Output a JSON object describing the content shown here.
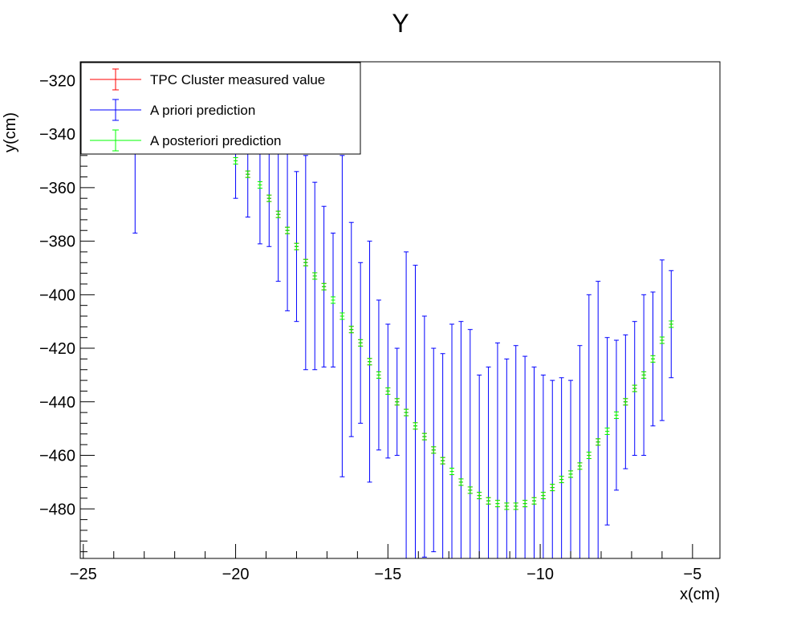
{
  "chart_data": {
    "type": "scatter",
    "title": "Y",
    "xlabel": "x(cm)",
    "ylabel": "y(cm)",
    "xlim": [
      -25.1,
      -4.1
    ],
    "ylim": [
      -498.5,
      -313
    ],
    "x_ticks": [
      -25,
      -20,
      -15,
      -10,
      -5
    ],
    "y_ticks": [
      -480,
      -460,
      -440,
      -420,
      -400,
      -380,
      -360,
      -340,
      -320
    ],
    "x_tick_labels": [
      "−25",
      "−20",
      "−15",
      "−10",
      "−5"
    ],
    "y_tick_labels": [
      "−480",
      "−460",
      "−440",
      "−420",
      "−400",
      "−380",
      "−360",
      "−340",
      "−320"
    ],
    "grid": false,
    "legend_position": "top-left",
    "series": [
      {
        "name": "TPC Cluster measured value",
        "color": "#ff0000",
        "points": [
          [
            -20.0,
            -350
          ],
          [
            -19.6,
            -355
          ],
          [
            -19.2,
            -359
          ],
          [
            -18.9,
            -364
          ],
          [
            -18.6,
            -370
          ],
          [
            -18.3,
            -376
          ],
          [
            -18.0,
            -382
          ],
          [
            -17.7,
            -388
          ],
          [
            -17.4,
            -393
          ],
          [
            -17.1,
            -397
          ],
          [
            -16.8,
            -402
          ],
          [
            -16.5,
            -408
          ],
          [
            -16.2,
            -413
          ],
          [
            -15.9,
            -418
          ],
          [
            -15.6,
            -425
          ],
          [
            -15.3,
            -430
          ],
          [
            -15.0,
            -436
          ],
          [
            -14.7,
            -440
          ],
          [
            -14.4,
            -444
          ],
          [
            -14.1,
            -449
          ],
          [
            -13.8,
            -453
          ],
          [
            -13.5,
            -458
          ],
          [
            -13.2,
            -462
          ],
          [
            -12.9,
            -466
          ],
          [
            -12.6,
            -470
          ],
          [
            -12.3,
            -473
          ],
          [
            -12.0,
            -475
          ],
          [
            -11.7,
            -477
          ],
          [
            -11.4,
            -478
          ],
          [
            -11.1,
            -479
          ],
          [
            -10.8,
            -479
          ],
          [
            -10.5,
            -478
          ],
          [
            -10.2,
            -477
          ],
          [
            -9.9,
            -475
          ],
          [
            -9.6,
            -472
          ],
          [
            -9.3,
            -469
          ],
          [
            -9.0,
            -467
          ],
          [
            -8.7,
            -464
          ],
          [
            -8.4,
            -460
          ],
          [
            -8.1,
            -455
          ],
          [
            -7.8,
            -451
          ],
          [
            -7.5,
            -445
          ],
          [
            -7.2,
            -440
          ],
          [
            -6.9,
            -435
          ],
          [
            -6.6,
            -430
          ],
          [
            -6.3,
            -424
          ],
          [
            -6.0,
            -417
          ],
          [
            -5.7,
            -411
          ]
        ]
      },
      {
        "name": "A priori prediction",
        "color": "#0000ff",
        "points": [
          [
            -23.3,
            -345
          ],
          [
            -20.0,
            -350
          ],
          [
            -19.6,
            -355
          ],
          [
            -19.2,
            -359
          ],
          [
            -18.9,
            -364
          ],
          [
            -18.6,
            -370
          ],
          [
            -18.3,
            -376
          ],
          [
            -18.0,
            -382
          ],
          [
            -17.7,
            -388
          ],
          [
            -17.4,
            -393
          ],
          [
            -17.1,
            -397
          ],
          [
            -16.8,
            -402
          ],
          [
            -16.5,
            -408
          ],
          [
            -16.2,
            -413
          ],
          [
            -15.9,
            -418
          ],
          [
            -15.6,
            -425
          ],
          [
            -15.3,
            -430
          ],
          [
            -15.0,
            -436
          ],
          [
            -14.7,
            -440
          ],
          [
            -14.4,
            -444
          ],
          [
            -14.1,
            -449
          ],
          [
            -13.8,
            -453
          ],
          [
            -13.5,
            -458
          ],
          [
            -13.2,
            -462
          ],
          [
            -12.9,
            -466
          ],
          [
            -12.6,
            -470
          ],
          [
            -12.3,
            -473
          ],
          [
            -12.0,
            -475
          ],
          [
            -11.7,
            -477
          ],
          [
            -11.4,
            -478
          ],
          [
            -11.1,
            -479
          ],
          [
            -10.8,
            -479
          ],
          [
            -10.5,
            -478
          ],
          [
            -10.2,
            -477
          ],
          [
            -9.9,
            -475
          ],
          [
            -9.6,
            -472
          ],
          [
            -9.3,
            -469
          ],
          [
            -9.0,
            -467
          ],
          [
            -8.7,
            -464
          ],
          [
            -8.4,
            -460
          ],
          [
            -8.1,
            -455
          ],
          [
            -7.8,
            -451
          ],
          [
            -7.5,
            -445
          ],
          [
            -7.2,
            -440
          ],
          [
            -6.9,
            -435
          ],
          [
            -6.6,
            -430
          ],
          [
            -6.3,
            -424
          ],
          [
            -6.0,
            -417
          ],
          [
            -5.7,
            -411
          ]
        ],
        "errors": [
          32,
          14,
          16,
          22,
          18,
          25,
          30,
          28,
          40,
          35,
          30,
          25,
          60,
          40,
          30,
          45,
          28,
          25,
          20,
          60,
          60,
          45,
          38,
          40,
          55,
          60,
          60,
          45,
          50,
          60,
          55,
          60,
          55,
          50,
          45,
          40,
          38,
          35,
          45,
          60,
          60,
          35,
          28,
          25,
          25,
          30,
          25,
          30,
          20
        ]
      },
      {
        "name": "A posteriori prediction",
        "color": "#00ff00",
        "points": [
          [
            -20.0,
            -350
          ],
          [
            -19.6,
            -355
          ],
          [
            -19.2,
            -359
          ],
          [
            -18.9,
            -364
          ],
          [
            -18.6,
            -370
          ],
          [
            -18.3,
            -376
          ],
          [
            -18.0,
            -382
          ],
          [
            -17.7,
            -388
          ],
          [
            -17.4,
            -393
          ],
          [
            -17.1,
            -397
          ],
          [
            -16.8,
            -402
          ],
          [
            -16.5,
            -408
          ],
          [
            -16.2,
            -413
          ],
          [
            -15.9,
            -418
          ],
          [
            -15.6,
            -425
          ],
          [
            -15.3,
            -430
          ],
          [
            -15.0,
            -436
          ],
          [
            -14.7,
            -440
          ],
          [
            -14.4,
            -444
          ],
          [
            -14.1,
            -449
          ],
          [
            -13.8,
            -453
          ],
          [
            -13.5,
            -458
          ],
          [
            -13.2,
            -462
          ],
          [
            -12.9,
            -466
          ],
          [
            -12.6,
            -470
          ],
          [
            -12.3,
            -473
          ],
          [
            -12.0,
            -475
          ],
          [
            -11.7,
            -477
          ],
          [
            -11.4,
            -478
          ],
          [
            -11.1,
            -479
          ],
          [
            -10.8,
            -479
          ],
          [
            -10.5,
            -478
          ],
          [
            -10.2,
            -477
          ],
          [
            -9.9,
            -475
          ],
          [
            -9.6,
            -472
          ],
          [
            -9.3,
            -469
          ],
          [
            -9.0,
            -467
          ],
          [
            -8.7,
            -464
          ],
          [
            -8.4,
            -460
          ],
          [
            -8.1,
            -455
          ],
          [
            -7.8,
            -451
          ],
          [
            -7.5,
            -445
          ],
          [
            -7.2,
            -440
          ],
          [
            -6.9,
            -435
          ],
          [
            -6.6,
            -430
          ],
          [
            -6.3,
            -424
          ],
          [
            -6.0,
            -417
          ],
          [
            -5.7,
            -411
          ]
        ]
      }
    ],
    "legend": [
      {
        "label": "TPC Cluster measured value",
        "color": "#ff0000"
      },
      {
        "label": "A priori prediction",
        "color": "#0000ff"
      },
      {
        "label": "A posteriori prediction",
        "color": "#00ff00"
      }
    ]
  }
}
